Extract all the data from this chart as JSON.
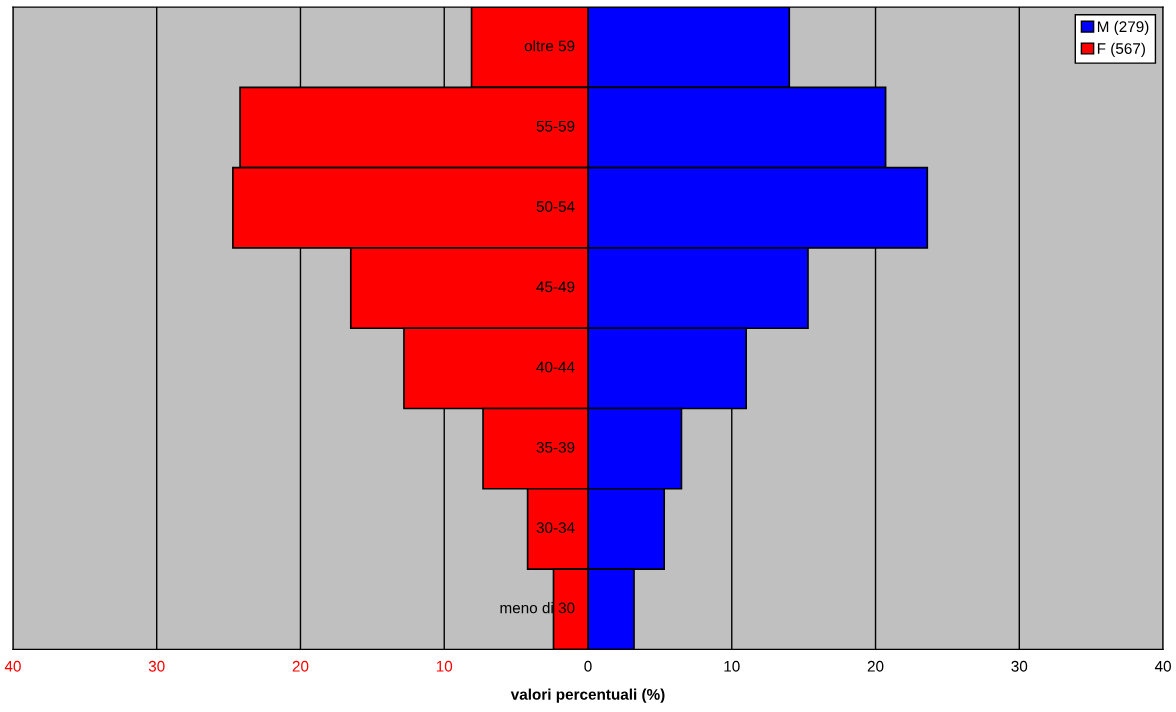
{
  "chart_data": {
    "type": "bar",
    "orientation": "horizontal",
    "xlabel": "valori percentuali (%)",
    "categories": [
      "oltre 59",
      "55-59",
      "50-54",
      "45-49",
      "40-44",
      "35-39",
      "30-34",
      "meno di 30"
    ],
    "series": [
      {
        "name": "M (279)",
        "color": "#0000ff",
        "values": [
          14.0,
          20.7,
          23.6,
          15.3,
          11.0,
          6.5,
          5.3,
          3.2
        ]
      },
      {
        "name": "F (567)",
        "color": "#ff0000",
        "values": [
          -8.1,
          -24.2,
          -24.7,
          -16.5,
          -12.8,
          -7.3,
          -4.2,
          -2.4
        ]
      }
    ],
    "xlim": [
      -40,
      40
    ],
    "xticks": [
      {
        "value": -40,
        "label": "40"
      },
      {
        "value": -30,
        "label": "30"
      },
      {
        "value": -20,
        "label": "20"
      },
      {
        "value": -10,
        "label": "10"
      },
      0,
      10,
      20,
      30,
      40
    ],
    "grid": "x",
    "legend": "top right",
    "stacked": true
  }
}
